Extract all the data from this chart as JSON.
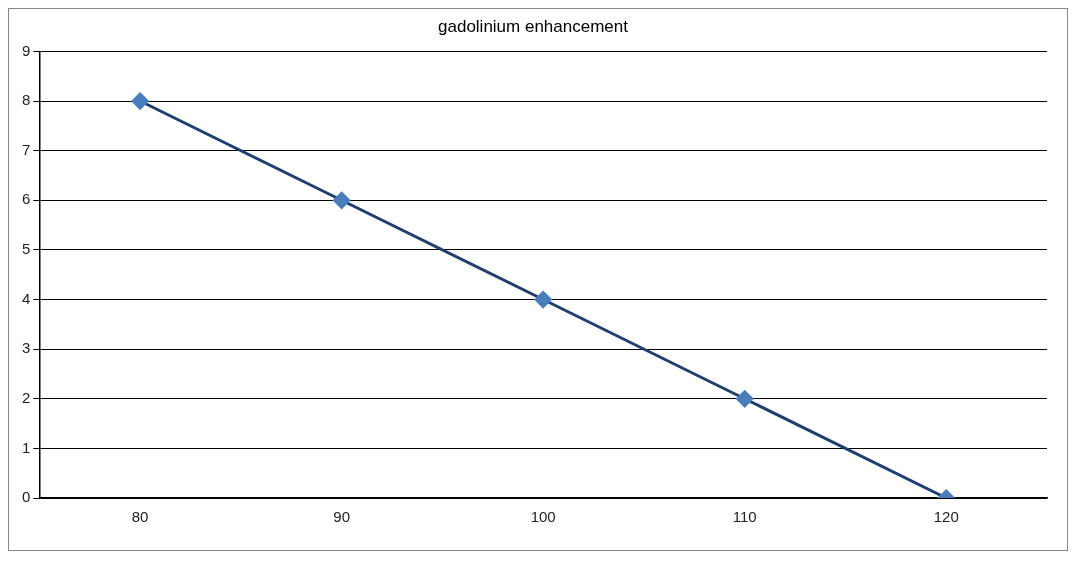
{
  "chart_data": {
    "type": "line",
    "title": "gadolinium enhancement",
    "categories": [
      "80",
      "90",
      "100",
      "110",
      "120"
    ],
    "series": [
      {
        "color": "#1f3f6e",
        "colors": [
          "#4a7ebb",
          "#4a7ebb",
          "#4a7ebb",
          "#4a7ebb",
          "#4a7ebb"
        ],
        "values": [
          8,
          6,
          4,
          2,
          0
        ]
      }
    ],
    "ylim": [
      0,
      9
    ],
    "yticks": [
      0,
      1,
      2,
      3,
      4,
      5,
      6,
      7,
      8,
      9
    ],
    "grid": "y",
    "legend": false,
    "marker": "diamond",
    "line_style": "solid"
  }
}
